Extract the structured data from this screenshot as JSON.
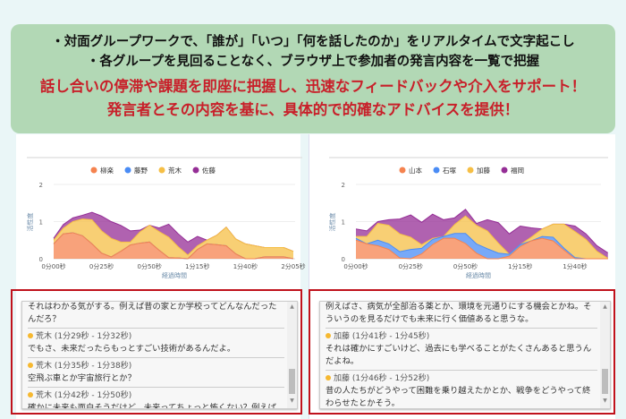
{
  "banner": {
    "line1": "・対面グループワークで、「誰が」「いつ」「何を話したのか」をリアルタイムで文字起こし",
    "line2": "・各グループを見回ることなく、ブラウザ上で参加者の発言内容を一覧で把握",
    "line3": "話し合いの停滞や課題を即座に把握し、迅速なフィードバックや介入をサポート！",
    "line4": "発言者とその内容を基に、具体的で的確なアドバイスを提供！"
  },
  "chart_data": [
    {
      "type": "area",
      "stacked": true,
      "ylabel": "活性度",
      "xlabel": "経過時間",
      "ylim": [
        0,
        2
      ],
      "yticks": [
        "0",
        "1",
        "2"
      ],
      "xticks": [
        "0分00秒",
        "0分25秒",
        "0分50秒",
        "1分15秒",
        "1分40秒",
        "2分05秒"
      ],
      "xtick_seconds": [
        0,
        25,
        50,
        75,
        100,
        125
      ],
      "x_seconds": [
        0,
        5,
        10,
        15,
        20,
        25,
        30,
        35,
        40,
        45,
        50,
        55,
        60,
        65,
        70,
        75,
        80,
        85,
        90,
        95,
        100,
        105,
        110,
        115,
        120,
        125
      ],
      "legend": "top",
      "grid": true,
      "series": [
        {
          "name": "柳楽",
          "color": "#f5834f",
          "values": [
            0.4,
            0.67,
            0.7,
            0.62,
            0.4,
            0.15,
            0.05,
            0.2,
            0.37,
            0.42,
            0.45,
            0.23,
            0.03,
            0.02,
            0,
            0.25,
            0.4,
            0.38,
            0.35,
            0.13,
            0,
            0,
            0.05,
            0.05,
            0.05,
            0
          ]
        },
        {
          "name": "藤野",
          "color": "#4a8cf5",
          "values": [
            0,
            0,
            0,
            0,
            0,
            0,
            0,
            0,
            0,
            0,
            0,
            0,
            0,
            0,
            0,
            0,
            0,
            0,
            0,
            0,
            0,
            0,
            0,
            0,
            0,
            0
          ]
        },
        {
          "name": "荒木",
          "color": "#f6bf45",
          "values": [
            0.1,
            0.15,
            0.3,
            0.45,
            0.65,
            0.6,
            0.5,
            0.25,
            0.08,
            0.3,
            0.45,
            0.5,
            0.55,
            0.3,
            0.1,
            0.1,
            0.1,
            0.25,
            0.5,
            0.4,
            0.4,
            0.35,
            0.25,
            0.25,
            0.25,
            0.2
          ]
        },
        {
          "name": "佐藤",
          "color": "#952e96",
          "values": [
            0.05,
            0.1,
            0.1,
            0.1,
            0.2,
            0.4,
            0.45,
            0.45,
            0.3,
            0.05,
            0,
            0.1,
            0.35,
            0.35,
            0.35,
            0.25,
            0,
            0,
            0,
            0,
            0,
            0,
            0,
            0,
            0,
            0
          ]
        }
      ]
    },
    {
      "type": "area",
      "stacked": true,
      "ylabel": "活性度",
      "xlabel": "経過時間",
      "ylim": [
        0,
        2
      ],
      "yticks": [
        "0",
        "1",
        "2"
      ],
      "xticks": [
        "0分00秒",
        "0分25秒",
        "0分50秒",
        "1分15秒",
        "1分40秒"
      ],
      "xtick_seconds": [
        0,
        25,
        50,
        75,
        100
      ],
      "x_seconds": [
        0,
        5,
        10,
        15,
        20,
        25,
        30,
        35,
        40,
        45,
        50,
        55,
        60,
        65,
        70,
        75,
        80,
        85,
        90,
        95,
        100,
        105,
        110,
        115
      ],
      "legend": "top",
      "grid": true,
      "series": [
        {
          "name": "山本",
          "color": "#f5834f",
          "values": [
            0.5,
            0.4,
            0.35,
            0.25,
            0.02,
            0,
            0.13,
            0.38,
            0.55,
            0.55,
            0.41,
            0.15,
            0,
            0,
            0.07,
            0.33,
            0.48,
            0.55,
            0.48,
            0.23,
            0,
            0,
            0,
            0
          ]
        },
        {
          "name": "石塚",
          "color": "#4a8cf5",
          "values": [
            0.05,
            0,
            0.15,
            0.15,
            0.17,
            0.25,
            0.15,
            0.14,
            0.05,
            0.13,
            0.27,
            0.25,
            0.27,
            0.15,
            0.05,
            0.05,
            0,
            0.05,
            0.1,
            0.05,
            0.03,
            0,
            0,
            0
          ]
        },
        {
          "name": "加藤",
          "color": "#f6bf45",
          "values": [
            0.05,
            0.2,
            0.45,
            0.5,
            0.48,
            0.33,
            0.1,
            0.03,
            0,
            0.24,
            0.47,
            0.5,
            0.48,
            0.27,
            0,
            0,
            0.1,
            0.2,
            0.35,
            0.65,
            0.7,
            0.52,
            0.2,
            0.01
          ]
        },
        {
          "name": "福岡",
          "color": "#952e96",
          "values": [
            0.2,
            0.15,
            0.05,
            0.15,
            0.4,
            0.6,
            0.6,
            0.65,
            0.45,
            0.18,
            0.18,
            0.05,
            0.3,
            0.55,
            0.55,
            0.5,
            0.25,
            0,
            0,
            0,
            0.15,
            0.15,
            0.15,
            0.15
          ]
        }
      ]
    }
  ],
  "transcripts": [
    {
      "first_text": "それはわかる気がする。例えば昔の家とか学校ってどんなんだったんだろ？",
      "entries": [
        {
          "speaker": "荒木 (1分29秒 - 1分32秒)",
          "text": "でもさ、未来だったらもっとすごい技術があるんだよ。"
        },
        {
          "speaker": "荒木 (1分35秒 - 1分38秒)",
          "text": "空飛ぶ車とか宇宙旅行とか？"
        },
        {
          "speaker": "荒木 (1分42秒 - 1分50秒)",
          "text": "確かに未来も面白そうだけど、未来ってちょっと怖くない？例えば地球が住めなくなっていたらどうするの？"
        }
      ]
    },
    {
      "first_text": "例えばさ、病気が全部治る薬とか、環境を元通りにする機会とかね。そういうのを見るだけでも未来に行く価値あると思うな。",
      "entries": [
        {
          "speaker": "加藤 (1分41秒 - 1分45秒)",
          "text": "それは確かにすごいけど、過去にも学べることがたくさんあると思うんだよね。"
        },
        {
          "speaker": "加藤 (1分46秒 - 1分52秒)",
          "text": "昔の人たちがどうやって困難を乗り越えたかとか、戦争をどうやって終わらせたとかそう。"
        }
      ]
    }
  ]
}
